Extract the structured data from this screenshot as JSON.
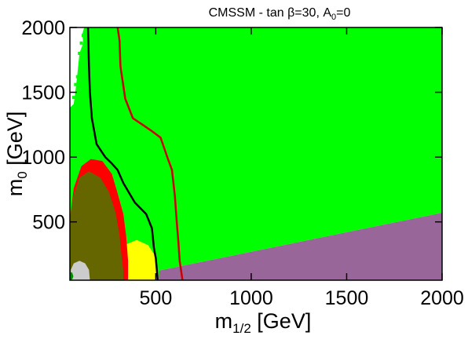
{
  "chart_data": {
    "type": "area",
    "title": {
      "prefix": "CMSSM  -  tan ",
      "beta": "β",
      "mid": "=30,  A",
      "sub": "0",
      "suffix": "=0"
    },
    "xlabel": {
      "base": "m",
      "sub": "1/2",
      "suffix": " [GeV]"
    },
    "ylabel": {
      "base": "m",
      "sub": "0",
      "suffix": " [GeV]"
    },
    "xlim": [
      50,
      2000
    ],
    "ylim": [
      50,
      2000
    ],
    "xticks": [
      500,
      1000,
      1500,
      2000
    ],
    "yticks": [
      500,
      1000,
      1500,
      2000
    ],
    "xtick_labels": [
      "500",
      "1000",
      "1500",
      "2000"
    ],
    "ytick_labels": [
      "500",
      "1000",
      "1500",
      "2000"
    ],
    "grid": false,
    "colors": {
      "background": "#ffffff",
      "bright_green": "#00ff00",
      "dark_green": "#008800",
      "purple": "#996699",
      "yellow": "#ffff00",
      "red": "#ff0000",
      "olive": "#666600",
      "gray": "#cccccc",
      "black_contour": "#000000",
      "red_contour": "#cc0000"
    },
    "regions": [
      {
        "id": "bright-green-region",
        "color": "bright_green",
        "points": [
          [
            130,
            2000
          ],
          [
            2000,
            2000
          ],
          [
            2000,
            570
          ],
          [
            520,
            125
          ],
          [
            515,
            50
          ],
          [
            50,
            50
          ],
          [
            50,
            1380
          ],
          [
            70,
            1410
          ],
          [
            80,
            1520
          ],
          [
            90,
            1650
          ],
          [
            100,
            1800
          ],
          [
            120,
            1880
          ],
          [
            115,
            1950
          ],
          [
            125,
            2000
          ]
        ]
      },
      {
        "id": "purple-region",
        "color": "purple",
        "points": [
          [
            515,
            50
          ],
          [
            2000,
            50
          ],
          [
            2000,
            570
          ],
          [
            520,
            125
          ]
        ]
      },
      {
        "id": "yellow-region",
        "color": "yellow",
        "points": [
          [
            330,
            50
          ],
          [
            330,
            200
          ],
          [
            350,
            330
          ],
          [
            400,
            360
          ],
          [
            460,
            320
          ],
          [
            500,
            230
          ],
          [
            510,
            130
          ],
          [
            515,
            50
          ]
        ]
      },
      {
        "id": "red-region",
        "color": "red",
        "points": [
          [
            50,
            50
          ],
          [
            50,
            520
          ],
          [
            70,
            760
          ],
          [
            110,
            930
          ],
          [
            160,
            985
          ],
          [
            220,
            970
          ],
          [
            270,
            870
          ],
          [
            300,
            720
          ],
          [
            330,
            560
          ],
          [
            345,
            390
          ],
          [
            355,
            200
          ],
          [
            355,
            50
          ]
        ]
      },
      {
        "id": "olive-region",
        "color": "olive",
        "points": [
          [
            50,
            50
          ],
          [
            50,
            520
          ],
          [
            65,
            680
          ],
          [
            100,
            840
          ],
          [
            150,
            890
          ],
          [
            210,
            840
          ],
          [
            255,
            730
          ],
          [
            290,
            570
          ],
          [
            310,
            400
          ],
          [
            320,
            250
          ],
          [
            330,
            120
          ],
          [
            330,
            50
          ]
        ]
      },
      {
        "id": "gray-region",
        "color": "gray",
        "points": [
          [
            55,
            50
          ],
          [
            55,
            130
          ],
          [
            70,
            180
          ],
          [
            100,
            200
          ],
          [
            130,
            180
          ],
          [
            150,
            130
          ],
          [
            155,
            50
          ]
        ]
      },
      {
        "id": "dark-green-patch",
        "color": "dark_green",
        "points": [
          [
            50,
            55
          ],
          [
            50,
            110
          ],
          [
            62,
            110
          ],
          [
            68,
            80
          ],
          [
            62,
            55
          ]
        ]
      }
    ],
    "contours": [
      {
        "id": "black-contour",
        "color": "black_contour",
        "points": [
          [
            145,
            2000
          ],
          [
            150,
            1700
          ],
          [
            155,
            1500
          ],
          [
            165,
            1300
          ],
          [
            190,
            1100
          ],
          [
            235,
            1000
          ],
          [
            270,
            950
          ],
          [
            300,
            900
          ],
          [
            330,
            800
          ],
          [
            390,
            650
          ],
          [
            450,
            560
          ],
          [
            480,
            450
          ],
          [
            490,
            300
          ],
          [
            500,
            220
          ],
          [
            505,
            140
          ],
          [
            510,
            50
          ]
        ]
      },
      {
        "id": "red-contour",
        "color": "red_contour",
        "points": [
          [
            300,
            2000
          ],
          [
            310,
            1900
          ],
          [
            315,
            1700
          ],
          [
            340,
            1450
          ],
          [
            380,
            1300
          ],
          [
            430,
            1250
          ],
          [
            480,
            1200
          ],
          [
            525,
            1150
          ],
          [
            560,
            1000
          ],
          [
            585,
            900
          ],
          [
            600,
            700
          ],
          [
            610,
            500
          ],
          [
            618,
            350
          ],
          [
            625,
            200
          ],
          [
            640,
            50
          ]
        ]
      }
    ],
    "scatter_specks": {
      "color": "bright_green",
      "points": [
        [
          100,
          1800
        ],
        [
          105,
          1700
        ],
        [
          90,
          1620
        ],
        [
          80,
          1560
        ],
        [
          70,
          1460
        ],
        [
          95,
          1500
        ],
        [
          110,
          1880
        ],
        [
          120,
          1940
        ],
        [
          85,
          1450
        ]
      ]
    }
  }
}
